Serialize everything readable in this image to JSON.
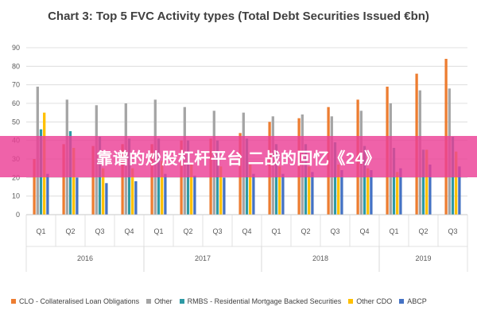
{
  "chart_data": {
    "type": "bar",
    "title": "Chart 3: Top 5 FVC Activity types (Total Debt Securities Issued €bn)",
    "ylim": [
      0,
      90
    ],
    "yticks": [
      0,
      10,
      20,
      30,
      40,
      50,
      60,
      70,
      80,
      90
    ],
    "grid": true,
    "legend_position": "bottom",
    "categories": [
      "Q1",
      "Q2",
      "Q3",
      "Q4",
      "Q1",
      "Q2",
      "Q3",
      "Q4",
      "Q1",
      "Q2",
      "Q3",
      "Q4",
      "Q1",
      "Q2",
      "Q3"
    ],
    "years": [
      {
        "label": "2016",
        "start": 0,
        "count": 4
      },
      {
        "label": "2017",
        "start": 4,
        "count": 4
      },
      {
        "label": "2018",
        "start": 8,
        "count": 4
      },
      {
        "label": "2019",
        "start": 12,
        "count": 3
      }
    ],
    "series": [
      {
        "name": "CLO - Collateralised Loan Obligations",
        "color": "#ED7D31",
        "values": [
          30,
          38,
          37,
          38,
          38,
          40,
          41,
          44,
          50,
          52,
          58,
          62,
          69,
          76,
          84
        ]
      },
      {
        "name": "Other",
        "color": "#A5A5A5",
        "values": [
          69,
          62,
          59,
          60,
          62,
          58,
          56,
          55,
          53,
          54,
          53,
          56,
          60,
          67,
          68
        ]
      },
      {
        "name": "RMBS - Residential Mortgage Backed Securities",
        "color": "#2E9AA5",
        "values": [
          46,
          45,
          42,
          41,
          41,
          40,
          40,
          41,
          38,
          38,
          39,
          37,
          36,
          35,
          42
        ]
      },
      {
        "name": "Other CDO",
        "color": "#FFC000",
        "values": [
          55,
          36,
          25,
          25,
          29,
          27,
          26,
          27,
          26,
          26,
          27,
          25,
          23,
          35,
          34
        ]
      },
      {
        "name": "ABCP",
        "color": "#4472C4",
        "values": [
          22,
          20,
          17,
          18,
          22,
          21,
          20,
          22,
          22,
          23,
          24,
          24,
          25,
          27,
          26
        ]
      }
    ]
  },
  "banner": {
    "text": "靠谱的炒股杠杆平台 二战的回忆《24》"
  }
}
